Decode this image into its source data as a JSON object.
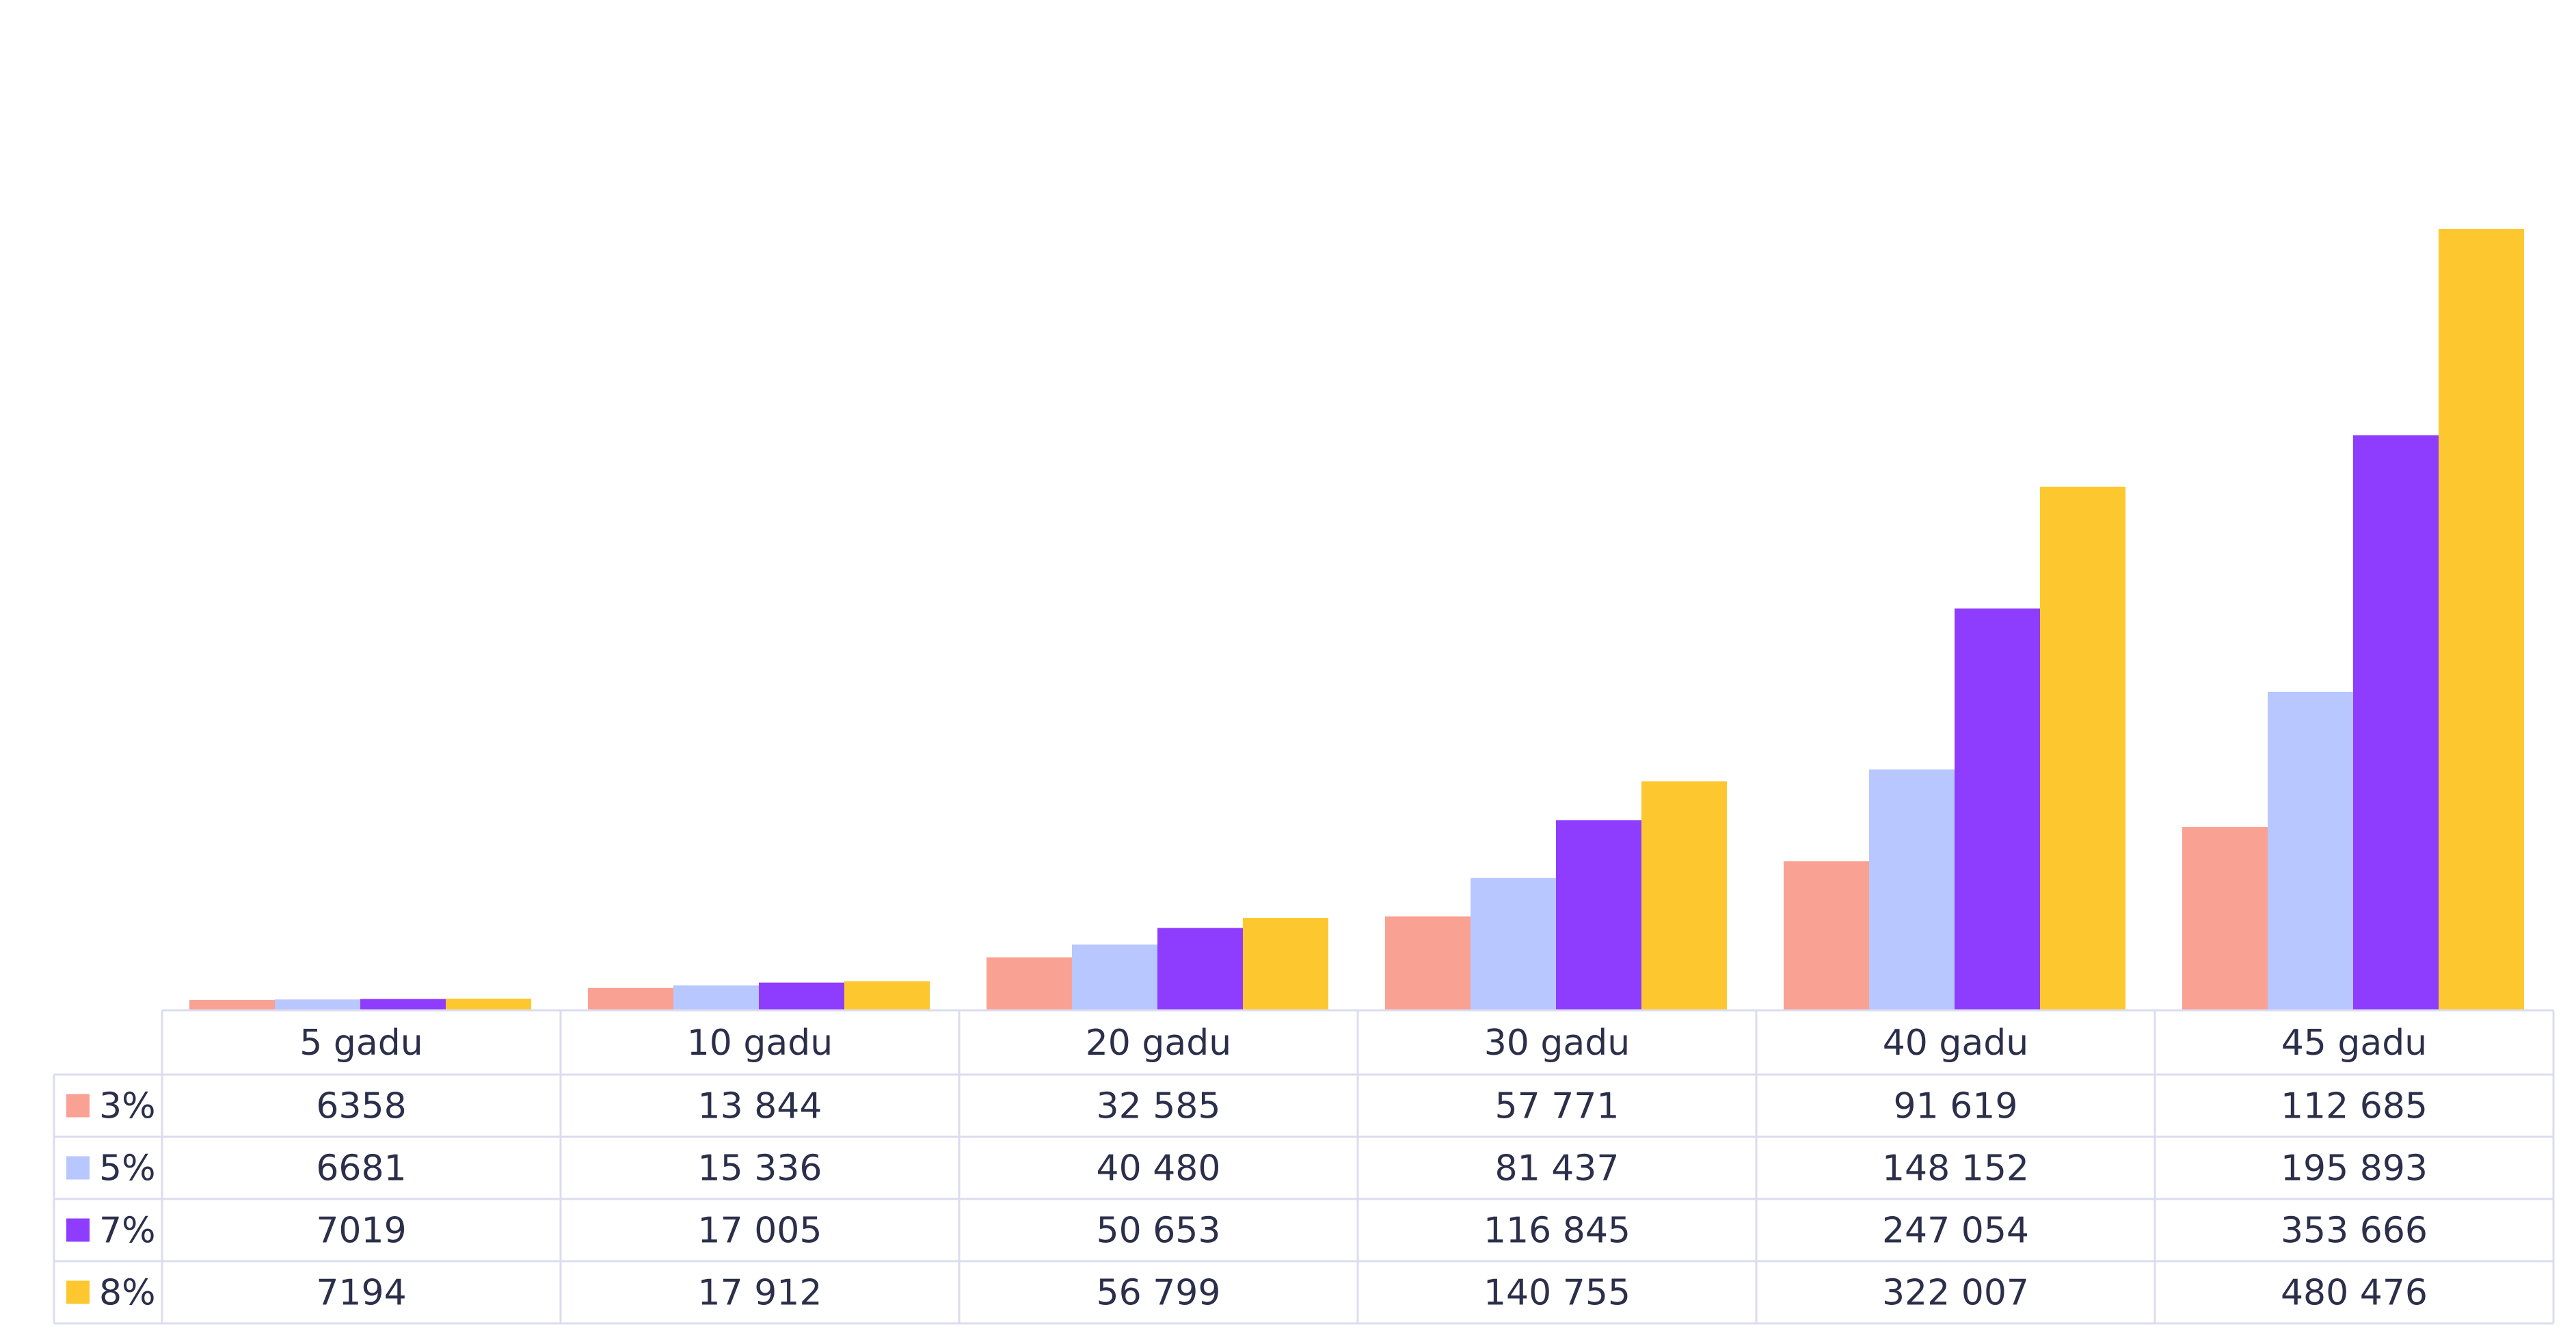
{
  "chart_data": {
    "type": "bar",
    "categories": [
      "5 gadu",
      "10 gadu",
      "20 gadu",
      "30 gadu",
      "40 gadu",
      "45 gadu"
    ],
    "series": [
      {
        "name": "3%",
        "color": "#f9a193",
        "values": [
          6358,
          13844,
          32585,
          57771,
          91619,
          112685
        ],
        "labels": [
          "6358",
          "13 844",
          "32 585",
          "57 771",
          "91 619",
          "112 685"
        ]
      },
      {
        "name": "5%",
        "color": "#b8c7ff",
        "values": [
          6681,
          15336,
          40480,
          81437,
          148152,
          195893
        ],
        "labels": [
          "6681",
          "15 336",
          "40 480",
          "81 437",
          "148 152",
          "195 893"
        ]
      },
      {
        "name": "7%",
        "color": "#8e3dff",
        "values": [
          7019,
          17005,
          50653,
          116845,
          247054,
          353666
        ],
        "labels": [
          "7019",
          "17 005",
          "50 653",
          "116 845",
          "247 054",
          "353 666"
        ]
      },
      {
        "name": "8%",
        "color": "#fdc82f",
        "values": [
          7194,
          17912,
          56799,
          140755,
          322007,
          480476
        ],
        "labels": [
          "7194",
          "17 912",
          "56 799",
          "140 755",
          "322 007",
          "480 476"
        ]
      }
    ],
    "ylim": [
      0,
      480476
    ],
    "grid": false,
    "legend": "data-table"
  }
}
